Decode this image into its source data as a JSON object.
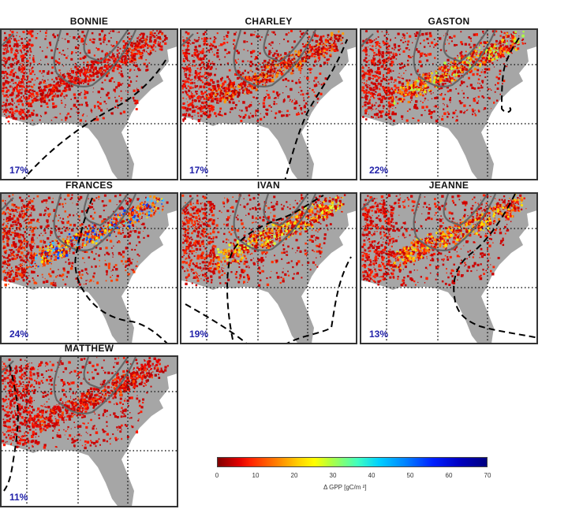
{
  "figure": {
    "panels": [
      {
        "title": "BONNIE",
        "percent": "17%"
      },
      {
        "title": "CHARLEY",
        "percent": "17%"
      },
      {
        "title": "GASTON",
        "percent": "22%"
      },
      {
        "title": "FRANCES",
        "percent": "24%"
      },
      {
        "title": "IVAN",
        "percent": "19%"
      },
      {
        "title": "JEANNE",
        "percent": "13%"
      },
      {
        "title": "MATTHEW",
        "percent": "11%"
      }
    ],
    "colorbar": {
      "ticks": [
        "0",
        "10",
        "20",
        "30",
        "40",
        "50",
        "60",
        "70"
      ],
      "label": "Δ GPP [gC/m ²]"
    }
  },
  "chart_data": {
    "type": "heatmap",
    "title": "",
    "description": "Small-multiple maps of the southeastern United States showing change in gross primary production (Δ GPP) following hurricanes, with dashed hurricane tracks and percent of area affected",
    "panels": [
      {
        "name": "BONNIE",
        "affected_percent": 17,
        "max_color_range": "red (0-15)"
      },
      {
        "name": "CHARLEY",
        "affected_percent": 17,
        "max_color_range": "orange (up to ~20)"
      },
      {
        "name": "GASTON",
        "affected_percent": 22,
        "max_color_range": "yellow-green (up to ~35)"
      },
      {
        "name": "FRANCES",
        "affected_percent": 24,
        "max_color_range": "blue (up to ~60)"
      },
      {
        "name": "IVAN",
        "affected_percent": 19,
        "max_color_range": "yellow (up to ~30)"
      },
      {
        "name": "JEANNE",
        "affected_percent": 13,
        "max_color_range": "yellow (up to ~25)"
      },
      {
        "name": "MATTHEW",
        "affected_percent": 11,
        "max_color_range": "red-orange (up to ~15)"
      }
    ],
    "colorbar": {
      "min": 0,
      "max": 70,
      "ticks": [
        0,
        10,
        20,
        30,
        40,
        50,
        60,
        70
      ],
      "colormap": "jet (reversed, red low to dark blue high)",
      "label": "Δ GPP [gC/m²]",
      "position": "bottom right"
    },
    "grid": "dotted lat/lon lines",
    "legend_position": "bottom-right colorbar"
  }
}
